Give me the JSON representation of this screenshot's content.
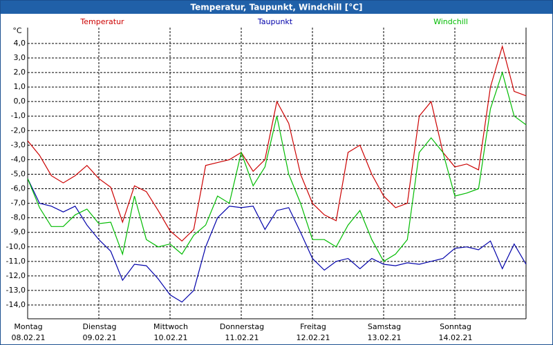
{
  "chart_data": {
    "type": "line",
    "title": "Temperatur, Taupunkt, Windchill [°C]",
    "y_label": "°C",
    "xlim": [
      0,
      168
    ],
    "ylim": [
      -14.95,
      5.09
    ],
    "grid": true,
    "xticks": [
      {
        "value": 0,
        "label": [
          "Montag",
          "08.02.21"
        ]
      },
      {
        "value": 24,
        "label": [
          "Dienstag",
          "09.02.21"
        ]
      },
      {
        "value": 48,
        "label": [
          "Mittwoch",
          "10.02.21"
        ]
      },
      {
        "value": 72,
        "label": [
          "Donnerstag",
          "11.02.21"
        ]
      },
      {
        "value": 96,
        "label": [
          "Freitag",
          "12.02.21"
        ]
      },
      {
        "value": 120,
        "label": [
          "Samstag",
          "13.02.21"
        ]
      },
      {
        "value": 144,
        "label": [
          "Sonntag",
          "14.02.21"
        ]
      }
    ],
    "yticks": [
      {
        "value": 4,
        "label": "4,0"
      },
      {
        "value": 3,
        "label": "3,0"
      },
      {
        "value": 2,
        "label": "2,0"
      },
      {
        "value": 1,
        "label": "1,0"
      },
      {
        "value": 0,
        "label": "0,0"
      },
      {
        "value": -1,
        "label": "-1,0"
      },
      {
        "value": -2,
        "label": "-2,0"
      },
      {
        "value": -3,
        "label": "-3,0"
      },
      {
        "value": -4,
        "label": "-4,0"
      },
      {
        "value": -5,
        "label": "-5,0"
      },
      {
        "value": -6,
        "label": "-6,0"
      },
      {
        "value": -7,
        "label": "-7,0"
      },
      {
        "value": -8,
        "label": "-8,0"
      },
      {
        "value": -9,
        "label": "-9,0"
      },
      {
        "value": -10,
        "label": "-10,0"
      },
      {
        "value": -11,
        "label": "-11,0"
      },
      {
        "value": -12,
        "label": "-12,0"
      },
      {
        "value": -13,
        "label": "-13,0"
      },
      {
        "value": -14,
        "label": "-14,0"
      }
    ],
    "x": [
      0,
      4,
      8,
      12,
      16,
      20,
      24,
      28,
      32,
      36,
      40,
      44,
      48,
      52,
      56,
      60,
      64,
      68,
      72,
      76,
      80,
      84,
      88,
      92,
      96,
      100,
      104,
      108,
      112,
      116,
      120,
      124,
      128,
      132,
      136,
      140,
      144,
      148,
      152,
      156,
      160,
      164,
      168
    ],
    "series": [
      {
        "name": "Temperatur",
        "color": "#cc0000",
        "values": [
          -2.7,
          -3.7,
          -5.1,
          -5.6,
          -5.1,
          -4.4,
          -5.3,
          -5.9,
          -8.3,
          -5.8,
          -6.2,
          -7.5,
          -8.9,
          -9.6,
          -8.8,
          -4.4,
          -4.2,
          -4.0,
          -3.5,
          -4.8,
          -4.0,
          0.0,
          -1.5,
          -5.0,
          -7.0,
          -7.8,
          -8.2,
          -3.5,
          -3.0,
          -5.0,
          -6.5,
          -7.3,
          -7.0,
          -1.0,
          0.0,
          -3.5,
          -4.5,
          -4.3,
          -4.7,
          1.0,
          3.8,
          0.7,
          0.4
        ]
      },
      {
        "name": "Taupunkt",
        "color": "#0000aa",
        "values": [
          -5.3,
          -7.0,
          -7.2,
          -7.6,
          -7.2,
          -8.5,
          -9.5,
          -10.3,
          -12.3,
          -11.2,
          -11.3,
          -12.2,
          -13.3,
          -13.8,
          -13.0,
          -10.0,
          -8.0,
          -7.2,
          -7.3,
          -7.2,
          -8.8,
          -7.5,
          -7.3,
          -9.0,
          -10.8,
          -11.6,
          -11.0,
          -10.8,
          -11.5,
          -10.8,
          -11.2,
          -11.3,
          -11.1,
          -11.2,
          -11.0,
          -10.8,
          -10.1,
          -10.0,
          -10.2,
          -9.6,
          -11.5,
          -9.8,
          -11.2
        ]
      },
      {
        "name": "Windchill",
        "color": "#00bb00",
        "values": [
          -5.3,
          -7.3,
          -8.6,
          -8.6,
          -7.8,
          -7.4,
          -8.4,
          -8.3,
          -10.5,
          -6.5,
          -9.5,
          -10.0,
          -9.8,
          -10.5,
          -9.2,
          -8.5,
          -6.5,
          -7.0,
          -3.5,
          -5.8,
          -4.5,
          -1.0,
          -5.0,
          -7.0,
          -9.5,
          -9.5,
          -10.0,
          -8.5,
          -7.5,
          -9.5,
          -11.0,
          -10.5,
          -9.5,
          -3.5,
          -2.5,
          -3.5,
          -6.5,
          -6.3,
          -6.0,
          -0.5,
          2.0,
          -1.0,
          -1.6
        ]
      }
    ]
  }
}
